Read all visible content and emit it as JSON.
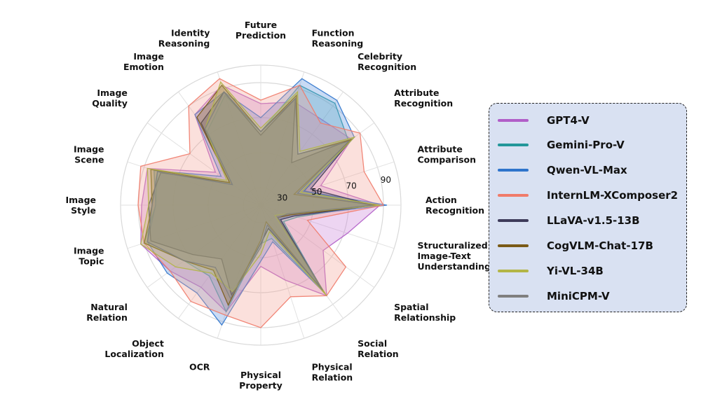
{
  "chart_data": {
    "type": "radar",
    "title": "",
    "axes": [
      "Future Prediction",
      "Function Reasoning",
      "Celebrity Recognition",
      "Attribute Recognition",
      "Attribute Comparison",
      "Action Recognition",
      "Structuralized Image-Text Understanding",
      "Spatial Relationship",
      "Social Relation",
      "Physical Relation",
      "Physical Property",
      "OCR",
      "Object Localization",
      "Natural Relation",
      "Image Topic",
      "Image Style",
      "Image Scene",
      "Image Quality",
      "Image Emotion",
      "Identity Reasoning"
    ],
    "range": [
      20,
      100
    ],
    "ticks": [
      "30",
      "50",
      "70",
      "90"
    ],
    "tick_values": [
      30,
      50,
      70,
      90
    ],
    "series": [
      {
        "name": "GPT4-V",
        "color": "#b15ec8",
        "fill": "#c77fd8",
        "values": [
          78,
          82,
          80,
          84,
          56,
          88,
          72,
          64,
          84,
          65,
          55,
          84,
          78,
          84,
          92,
          88,
          88,
          52,
          84,
          92
        ]
      },
      {
        "name": "Gemini-Pro-V",
        "color": "#23979a",
        "fill": "#5ab4b6",
        "values": [
          62,
          92,
          92,
          82,
          46,
          84,
          42,
          36,
          80,
          40,
          42,
          84,
          70,
          74,
          90,
          80,
          82,
          40,
          72,
          86
        ]
      },
      {
        "name": "Qwen-VL-Max",
        "color": "#2f74cc",
        "fill": "#5b93de",
        "values": [
          70,
          96,
          94,
          86,
          46,
          92,
          40,
          34,
          82,
          42,
          52,
          92,
          82,
          86,
          88,
          80,
          84,
          48,
          84,
          88
        ]
      },
      {
        "name": "InternLM-XComposer2",
        "color": "#f07b6a",
        "fill": "#f4a094",
        "values": [
          80,
          92,
          78,
          90,
          82,
          90,
          48,
          80,
          84,
          75,
          90,
          86,
          88,
          84,
          90,
          90,
          92,
          70,
          90,
          96
        ]
      },
      {
        "name": "LLaVA-v1.5-13B",
        "color": "#3e3b5a",
        "fill": "#5d5a75",
        "values": [
          60,
          84,
          50,
          84,
          50,
          84,
          40,
          34,
          78,
          34,
          42,
          74,
          58,
          68,
          86,
          84,
          80,
          42,
          78,
          88
        ]
      },
      {
        "name": "CogVLM-Chat-17B",
        "color": "#7a5a16",
        "fill": "#8e6e2a",
        "values": [
          62,
          86,
          56,
          84,
          40,
          86,
          38,
          32,
          82,
          30,
          40,
          80,
          66,
          74,
          90,
          82,
          86,
          42,
          82,
          92
        ]
      },
      {
        "name": "Yi-VL-34B",
        "color": "#b3b546",
        "fill": "#c0c26a",
        "values": [
          64,
          88,
          58,
          86,
          44,
          88,
          36,
          30,
          84,
          36,
          48,
          72,
          68,
          80,
          92,
          84,
          88,
          44,
          74,
          94
        ]
      },
      {
        "name": "MiniCPM-V",
        "color": "#7f7f7f",
        "fill": "#9a9a9a",
        "values": [
          62,
          84,
          56,
          82,
          42,
          84,
          36,
          32,
          80,
          32,
          44,
          76,
          64,
          74,
          88,
          82,
          82,
          40,
          74,
          88
        ]
      }
    ]
  },
  "labels": {
    "future_prediction": [
      "Future",
      "Prediction"
    ],
    "function_reasoning": [
      "Function",
      "Reasoning"
    ],
    "celebrity_recognition": [
      "Celebrity",
      "Recognition"
    ],
    "attribute_recognition": [
      "Attribute",
      "Recognition"
    ],
    "attribute_comparison": [
      "Attribute",
      "Comparison"
    ],
    "action_recognition": [
      "Action",
      "Recognition"
    ],
    "structuralized": [
      "Structuralized",
      "Image-Text",
      "Understanding"
    ],
    "spatial_relationship": [
      "Spatial",
      "Relationship"
    ],
    "social_relation": [
      "Social",
      "Relation"
    ],
    "physical_relation": [
      "Physical",
      "Relation"
    ],
    "physical_property": [
      "Physical",
      "Property"
    ],
    "ocr": [
      "OCR"
    ],
    "object_localization": [
      "Object",
      "Localization"
    ],
    "natural_relation": [
      "Natural",
      "Relation"
    ],
    "image_topic": [
      "Image",
      "Topic"
    ],
    "image_style": [
      "Image",
      "Style"
    ],
    "image_scene": [
      "Image",
      "Scene"
    ],
    "image_quality": [
      "Image",
      "Quality"
    ],
    "image_emotion": [
      "Image",
      "Emotion"
    ],
    "identity_reasoning": [
      "Identity",
      "Reasoning"
    ]
  },
  "legend": {
    "placement": "right",
    "items": [
      {
        "label": "GPT4-V",
        "color": "#b15ec8"
      },
      {
        "label": "Gemini-Pro-V",
        "color": "#23979a"
      },
      {
        "label": "Qwen-VL-Max",
        "color": "#2f74cc"
      },
      {
        "label": "InternLM-XComposer2",
        "color": "#f07b6a"
      },
      {
        "label": "LLaVA-v1.5-13B",
        "color": "#3e3b5a"
      },
      {
        "label": "CogVLM-Chat-17B",
        "color": "#7a5a16"
      },
      {
        "label": "Yi-VL-34B",
        "color": "#b3b546"
      },
      {
        "label": "MiniCPM-V",
        "color": "#7f7f7f"
      }
    ]
  }
}
